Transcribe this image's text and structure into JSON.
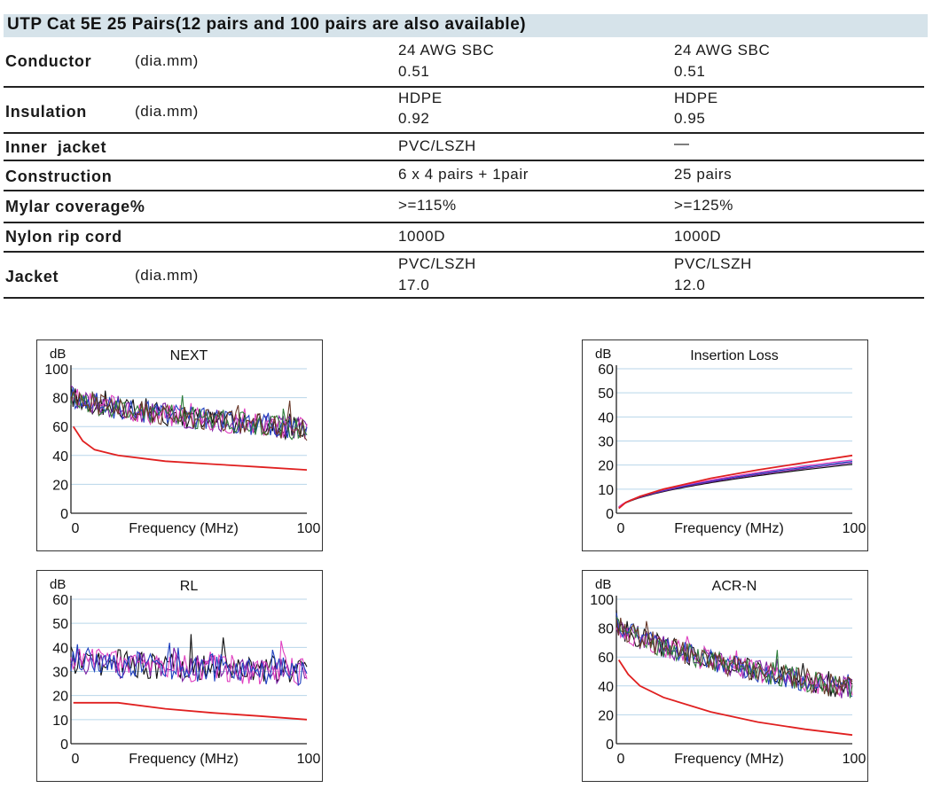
{
  "title": "UTP Cat 5E 25 Pairs(12 pairs and 100 pairs are also available)",
  "spec_rows": [
    {
      "property": "Conductor",
      "unit": "(dia.mm)",
      "col1": [
        "24 AWG SBC",
        "0.51"
      ],
      "col2": [
        "24 AWG SBC",
        "0.51"
      ]
    },
    {
      "property": "Insulation",
      "unit": "(dia.mm)",
      "col1": [
        "HDPE",
        "0.92"
      ],
      "col2": [
        "HDPE",
        "0.95"
      ]
    },
    {
      "property": "Inner  jacket",
      "unit": "",
      "col1": [
        "PVC/LSZH"
      ],
      "col2": [
        "—"
      ]
    },
    {
      "property": "Construction",
      "unit": "",
      "col1": [
        "6 x 4 pairs + 1pair"
      ],
      "col2": [
        "25 pairs"
      ]
    },
    {
      "property": "Mylar coverage%",
      "unit": "",
      "col1": [
        ">=115%"
      ],
      "col2": [
        ">=125%"
      ]
    },
    {
      "property": "Nylon rip cord",
      "unit": "",
      "col1": [
        "1000D"
      ],
      "col2": [
        "1000D"
      ]
    },
    {
      "property": "Jacket",
      "unit": "(dia.mm)",
      "col1": [
        "PVC/LSZH",
        "17.0"
      ],
      "col2": [
        "PVC/LSZH",
        "12.0"
      ]
    }
  ],
  "chart_data": [
    {
      "id": "next",
      "type": "line",
      "title": "NEXT",
      "ylabel": "dB",
      "xlabel": "Frequency (MHz)",
      "xlim": [
        0,
        100
      ],
      "ylim": [
        0,
        100
      ],
      "yticks": [
        0,
        20,
        40,
        60,
        80,
        100
      ],
      "xtick_labels": [
        "0",
        "100"
      ],
      "grid": true,
      "limit_line": {
        "color": "#e02020",
        "x": [
          1,
          5,
          10,
          20,
          40,
          60,
          80,
          100
        ],
        "y": [
          60,
          50,
          44,
          40,
          36,
          34,
          32,
          30
        ]
      },
      "measured": {
        "colors": [
          "#111111",
          "#7a1fa2",
          "#e040c0",
          "#1f3fbf",
          "#2e7d3a",
          "#6a3a2a"
        ],
        "y_start": 82,
        "y_end": 58,
        "noise": 8,
        "spikes": 12
      }
    },
    {
      "id": "insertion_loss",
      "type": "line",
      "title": "Insertion Loss",
      "ylabel": "dB",
      "xlabel": "Frequency (MHz)",
      "xlim": [
        0,
        100
      ],
      "ylim": [
        0,
        60
      ],
      "yticks": [
        0,
        10,
        20,
        30,
        40,
        50,
        60
      ],
      "xtick_labels": [
        "0",
        "100"
      ],
      "grid": true,
      "limit_line": {
        "color": "#e02020",
        "x": [
          1,
          4,
          10,
          20,
          40,
          60,
          80,
          100
        ],
        "y": [
          2,
          4.5,
          7,
          10,
          14.5,
          18,
          21,
          24
        ]
      },
      "measured": {
        "colors": [
          "#111111",
          "#7a1fa2",
          "#1f3fbf",
          "#e040c0"
        ],
        "y_end": 20.5,
        "spread": 1.2
      }
    },
    {
      "id": "rl",
      "type": "line",
      "title": "RL",
      "ylabel": "dB",
      "xlabel": "Frequency (MHz)",
      "xlim": [
        0,
        100
      ],
      "ylim": [
        0,
        60
      ],
      "yticks": [
        10,
        20,
        30,
        40,
        50,
        60
      ],
      "ytick_min_label": "0",
      "xtick_labels": [
        "0",
        "100"
      ],
      "grid": true,
      "limit_line": {
        "color": "#e02020",
        "x": [
          1,
          20,
          40,
          60,
          80,
          100
        ],
        "y": [
          17,
          17,
          14.5,
          12.8,
          11.5,
          10
        ]
      },
      "measured": {
        "colors": [
          "#111111",
          "#7a1fa2",
          "#e040c0",
          "#1f3fbf"
        ],
        "y_start": 35,
        "y_end": 30,
        "noise": 6,
        "spikes": 10
      }
    },
    {
      "id": "acr_n",
      "type": "line",
      "title": "ACR-N",
      "ylabel": "dB",
      "xlabel": "Frequency (MHz)",
      "xlim": [
        0,
        100
      ],
      "ylim": [
        0,
        100
      ],
      "yticks": [
        0,
        20,
        40,
        60,
        80,
        100
      ],
      "xtick_labels": [
        "0",
        "100"
      ],
      "grid": true,
      "limit_line": {
        "color": "#e02020",
        "x": [
          1,
          5,
          10,
          20,
          40,
          60,
          80,
          100
        ],
        "y": [
          58,
          48,
          40,
          32,
          22,
          15,
          10,
          6
        ]
      },
      "measured": {
        "colors": [
          "#111111",
          "#7a1fa2",
          "#e040c0",
          "#1f3fbf",
          "#2e7d3a",
          "#6a3a2a"
        ],
        "y_start": 85,
        "y_end": 38,
        "noise": 8,
        "spikes": 12
      }
    }
  ]
}
